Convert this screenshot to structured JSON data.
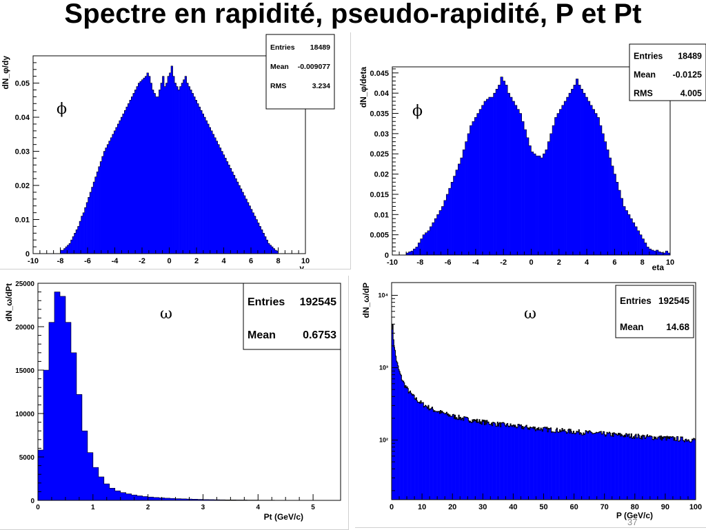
{
  "slide": {
    "title": "Spectre en rapidité, pseudo-rapidité, P et Pt",
    "page_number": "37"
  },
  "colors": {
    "fill": "#0000ff",
    "edge": "#000000",
    "frame": "#000000"
  },
  "chart_data": [
    {
      "type": "bar",
      "particle": "ϕ",
      "xlabel": "y",
      "ylabel": "dN_φ/dy",
      "xlim": [
        -10,
        10
      ],
      "ylim": [
        0,
        0.058
      ],
      "x_ticks": [
        "-10",
        "-8",
        "-6",
        "-4",
        "-2",
        "0",
        "2",
        "4",
        "6",
        "8",
        "10"
      ],
      "y_ticks": [
        "0",
        "0.01",
        "0.02",
        "0.03",
        "0.04",
        "0.05"
      ],
      "stats": [
        [
          "Entries",
          "18489"
        ],
        [
          "Mean",
          "-0.009077"
        ],
        [
          "RMS",
          "3.234"
        ]
      ],
      "bin_edges": [
        -8,
        8
      ],
      "values": [
        0.001,
        0.001,
        0.0015,
        0.002,
        0.0025,
        0.003,
        0.004,
        0.005,
        0.006,
        0.007,
        0.008,
        0.0095,
        0.011,
        0.012,
        0.0135,
        0.015,
        0.0165,
        0.018,
        0.0195,
        0.021,
        0.0225,
        0.024,
        0.0255,
        0.027,
        0.0285,
        0.03,
        0.031,
        0.032,
        0.033,
        0.034,
        0.035,
        0.036,
        0.037,
        0.038,
        0.039,
        0.04,
        0.041,
        0.042,
        0.043,
        0.044,
        0.045,
        0.046,
        0.047,
        0.048,
        0.049,
        0.05,
        0.0505,
        0.051,
        0.0515,
        0.052,
        0.053,
        0.052,
        0.05,
        0.048,
        0.047,
        0.046,
        0.046,
        0.048,
        0.05,
        0.052,
        0.049,
        0.05,
        0.052,
        0.053,
        0.055,
        0.052,
        0.05,
        0.049,
        0.048,
        0.049,
        0.05,
        0.051,
        0.052,
        0.05,
        0.049,
        0.048,
        0.047,
        0.046,
        0.045,
        0.044,
        0.043,
        0.042,
        0.041,
        0.04,
        0.039,
        0.038,
        0.037,
        0.036,
        0.035,
        0.034,
        0.033,
        0.032,
        0.031,
        0.03,
        0.029,
        0.028,
        0.027,
        0.026,
        0.025,
        0.024,
        0.023,
        0.022,
        0.021,
        0.02,
        0.019,
        0.018,
        0.017,
        0.016,
        0.015,
        0.014,
        0.013,
        0.012,
        0.011,
        0.01,
        0.009,
        0.008,
        0.007,
        0.006,
        0.005,
        0.004,
        0.003,
        0.0025,
        0.002,
        0.0015,
        0.001,
        0.0008
      ]
    },
    {
      "type": "bar",
      "particle": "ϕ",
      "xlabel": "eta",
      "ylabel": "dN_φ/deta",
      "xlim": [
        -10,
        10
      ],
      "ylim": [
        0,
        0.0465
      ],
      "x_ticks": [
        "-10",
        "-8",
        "-6",
        "-4",
        "-2",
        "0",
        "2",
        "4",
        "6",
        "8",
        "10"
      ],
      "y_ticks": [
        "0",
        "0.005",
        "0.01",
        "0.015",
        "0.02",
        "0.025",
        "0.03",
        "0.035",
        "0.04",
        "0.045"
      ],
      "stats": [
        [
          "Entries",
          "18489"
        ],
        [
          "Mean",
          "-0.0125"
        ],
        [
          "RMS",
          "4.005"
        ]
      ],
      "bin_edges": [
        -9,
        10
      ],
      "values": [
        0.0005,
        0.0008,
        0.001,
        0.0015,
        0.002,
        0.003,
        0.004,
        0.005,
        0.0055,
        0.006,
        0.007,
        0.008,
        0.009,
        0.01,
        0.011,
        0.012,
        0.0135,
        0.015,
        0.0165,
        0.018,
        0.0195,
        0.021,
        0.0225,
        0.024,
        0.026,
        0.028,
        0.03,
        0.032,
        0.033,
        0.034,
        0.035,
        0.036,
        0.037,
        0.038,
        0.0385,
        0.039,
        0.039,
        0.04,
        0.041,
        0.042,
        0.044,
        0.043,
        0.042,
        0.04,
        0.039,
        0.038,
        0.037,
        0.036,
        0.035,
        0.033,
        0.031,
        0.029,
        0.027,
        0.0255,
        0.025,
        0.0245,
        0.0245,
        0.024,
        0.025,
        0.026,
        0.028,
        0.03,
        0.032,
        0.034,
        0.035,
        0.036,
        0.037,
        0.038,
        0.039,
        0.04,
        0.041,
        0.042,
        0.0435,
        0.042,
        0.041,
        0.04,
        0.039,
        0.038,
        0.037,
        0.036,
        0.035,
        0.034,
        0.032,
        0.03,
        0.028,
        0.026,
        0.024,
        0.022,
        0.02,
        0.018,
        0.016,
        0.014,
        0.012,
        0.011,
        0.01,
        0.009,
        0.008,
        0.007,
        0.006,
        0.005,
        0.004,
        0.003,
        0.002,
        0.0015,
        0.0012,
        0.001,
        0.0012,
        0.0008,
        0.0006,
        0.0005,
        0.001,
        0.0005
      ]
    },
    {
      "type": "bar",
      "particle": "ω",
      "xlabel": "Pt (GeV/c)",
      "ylabel": "dN_ω/dPt",
      "xlim": [
        0,
        5.5
      ],
      "ylim": [
        0,
        25000
      ],
      "x_ticks": [
        "0",
        "1",
        "2",
        "3",
        "4",
        "5"
      ],
      "y_ticks": [
        "0",
        "5000",
        "10000",
        "15000",
        "20000",
        "25000"
      ],
      "stats": [
        [
          "Entries",
          "192545"
        ],
        [
          "Mean",
          "0.6753"
        ]
      ],
      "bin_width": 0.1,
      "values": [
        5800,
        15000,
        20500,
        24000,
        23500,
        20500,
        17000,
        12200,
        8000,
        5500,
        3800,
        2700,
        1900,
        1400,
        1100,
        900,
        750,
        620,
        520,
        440,
        380,
        330,
        290,
        250,
        220,
        190,
        170,
        150,
        130,
        115,
        100,
        90,
        80,
        70,
        60,
        55,
        50,
        45,
        40,
        35,
        30,
        27,
        24,
        21,
        18,
        15,
        13,
        11,
        9,
        8,
        6,
        5,
        4,
        3,
        2
      ]
    },
    {
      "type": "bar",
      "particle": "ω",
      "xlabel": "P (GeV/c)",
      "ylabel": "dN_ω/dP",
      "xlim": [
        0,
        100
      ],
      "log_y": true,
      "ylim": [
        15,
        15000
      ],
      "x_ticks": [
        "0",
        "10",
        "20",
        "30",
        "40",
        "50",
        "60",
        "70",
        "80",
        "90",
        "100"
      ],
      "y_ticks": [
        "10²",
        "10³",
        "10⁴"
      ],
      "stats": [
        [
          "Entries",
          "192545"
        ],
        [
          "Mean",
          "14.68"
        ]
      ],
      "curve": {
        "A": 6700,
        "p0": 0.4,
        "power": 1.1,
        "C": 14,
        "k": 0.005,
        "noise": 0.08
      }
    }
  ]
}
